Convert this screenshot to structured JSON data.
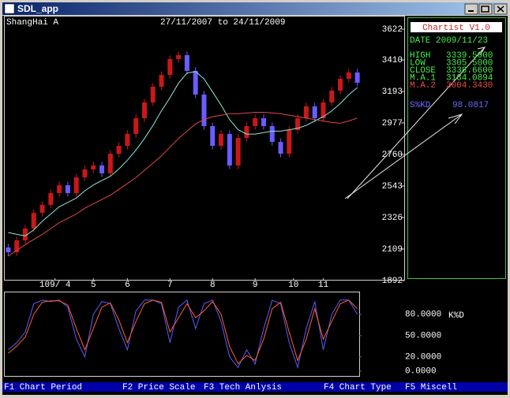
{
  "window": {
    "title": "SDL_app"
  },
  "header": {
    "market": "ShangHai A",
    "period": "27/11/2007 to 24/11/2009"
  },
  "info_panel": {
    "app": "Chartist V1.0",
    "date": "DATE 2009/11/23",
    "rows": [
      {
        "label": "HIGH",
        "value": "3339.5000"
      },
      {
        "label": "LOW",
        "value": "3305.5000"
      },
      {
        "label": "CLOSE",
        "value": "3338.6600"
      },
      {
        "label": "M.A.1",
        "value": "3184.0894"
      },
      {
        "label": "M.A.2",
        "value": "3004.3430"
      }
    ],
    "indicator": {
      "label": "S%KD",
      "value": "98.0817"
    }
  },
  "menu": [
    "F1 Chart Period",
    "F2 Price Scale",
    "F3 Tech Anlysis",
    "F4 Chart Type",
    "F5 Miscell"
  ],
  "chart_data": [
    {
      "type": "candlestick",
      "open": [
        2120,
        2087,
        2169,
        2250,
        2358,
        2413,
        2494,
        2548,
        2494,
        2602,
        2657,
        2684,
        2630,
        2765,
        2819,
        2901,
        3009,
        3118,
        3226,
        3307,
        3416,
        3443,
        3335,
        3172,
        2955,
        2819,
        2901,
        2684,
        2874,
        2955,
        3009,
        2955,
        2846,
        2765,
        2928,
        3009,
        3091,
        3009,
        3118,
        3199,
        3280,
        3324
      ],
      "high": [
        2145,
        2194,
        2275,
        2383,
        2438,
        2519,
        2573,
        2573,
        2627,
        2682,
        2709,
        2709,
        2790,
        2844,
        2926,
        3034,
        3143,
        3251,
        3332,
        3441,
        3468,
        3468,
        3360,
        3197,
        2980,
        2926,
        2926,
        2899,
        2980,
        3034,
        3034,
        2980,
        2871,
        2953,
        3034,
        3116,
        3116,
        3143,
        3224,
        3305,
        3349,
        3349
      ],
      "low": [
        2062,
        2062,
        2144,
        2225,
        2333,
        2388,
        2469,
        2469,
        2469,
        2577,
        2632,
        2605,
        2605,
        2740,
        2794,
        2876,
        2984,
        3093,
        3201,
        3282,
        3391,
        3310,
        3147,
        2930,
        2794,
        2794,
        2659,
        2659,
        2849,
        2930,
        2930,
        2821,
        2740,
        2740,
        2903,
        2984,
        2984,
        2984,
        3093,
        3174,
        3255,
        3228
      ],
      "close": [
        2087,
        2169,
        2250,
        2358,
        2413,
        2494,
        2548,
        2494,
        2602,
        2657,
        2684,
        2630,
        2765,
        2819,
        2901,
        3009,
        3118,
        3226,
        3307,
        3416,
        3443,
        3335,
        3172,
        2955,
        2819,
        2901,
        2684,
        2874,
        2955,
        3009,
        2955,
        2846,
        2765,
        2928,
        3009,
        3091,
        3009,
        3118,
        3199,
        3280,
        3324,
        3253
      ],
      "up_color": "#c81818",
      "down_color": "#6a5cff",
      "series": [
        {
          "color": "#8fe8d8",
          "values": [
            2223,
            2210,
            2200,
            2240,
            2300,
            2350,
            2400,
            2430,
            2460,
            2510,
            2550,
            2580,
            2610,
            2660,
            2720,
            2790,
            2870,
            2960,
            3060,
            3150,
            3250,
            3320,
            3330,
            3280,
            3190,
            3100,
            3000,
            2930,
            2900,
            2900,
            2910,
            2920,
            2920,
            2930,
            2940,
            2960,
            2990,
            3020,
            3060,
            3110,
            3170,
            3220
          ]
        },
        {
          "color": "#e04848",
          "values": [
            2060,
            2100,
            2140,
            2175,
            2210,
            2250,
            2290,
            2320,
            2350,
            2390,
            2420,
            2450,
            2480,
            2520,
            2560,
            2600,
            2650,
            2700,
            2750,
            2810,
            2870,
            2920,
            2970,
            3000,
            3020,
            3030,
            3040,
            3040,
            3045,
            3050,
            3050,
            3045,
            3040,
            3030,
            3020,
            3010,
            3000,
            2990,
            2980,
            2975,
            2990,
            3010
          ]
        }
      ],
      "xlim": [
        -0.5,
        41.5
      ],
      "xticks": [
        {
          "value": 5.5,
          "label": "109/ 4"
        },
        {
          "value": 10,
          "label": "5"
        },
        {
          "value": 14,
          "label": "6"
        },
        {
          "value": 19,
          "label": "7"
        },
        {
          "value": 24,
          "label": "8"
        },
        {
          "value": 29,
          "label": "9"
        },
        {
          "value": 33.5,
          "label": "10"
        },
        {
          "value": 37,
          "label": "11"
        }
      ],
      "ylim": [
        1892,
        3622
      ],
      "yticks": [
        3622,
        3410,
        3193,
        2977,
        2760,
        2543,
        2326,
        2109,
        1892
      ]
    },
    {
      "type": "line",
      "label": "K%D",
      "series": [
        {
          "color": "#5a5cff",
          "values": [
            30,
            40,
            55,
            95,
            100,
            98,
            100,
            90,
            45,
            20,
            80,
            98,
            95,
            60,
            30,
            85,
            100,
            100,
            95,
            40,
            90,
            100,
            60,
            95,
            100,
            70,
            20,
            5,
            30,
            10,
            60,
            100,
            95,
            40,
            5,
            60,
            98,
            30,
            80,
            100,
            100,
            80
          ]
        },
        {
          "color": "#ff6030",
          "values": [
            25,
            35,
            48,
            80,
            97,
            99,
            99,
            93,
            60,
            30,
            60,
            90,
            96,
            72,
            40,
            70,
            95,
            100,
            97,
            55,
            75,
            95,
            75,
            85,
            98,
            80,
            35,
            10,
            22,
            15,
            45,
            88,
            97,
            55,
            15,
            45,
            88,
            45,
            70,
            95,
            100,
            88
          ]
        }
      ],
      "xlim": [
        -0.5,
        41.5
      ],
      "ylim": [
        -8,
        112
      ],
      "yticks": [
        {
          "value": 80,
          "label": "80.0000"
        },
        {
          "value": 50,
          "label": "50.0000"
        },
        {
          "value": 20,
          "label": "20.0000"
        },
        {
          "value": 0,
          "label": "0.0000"
        }
      ]
    }
  ]
}
